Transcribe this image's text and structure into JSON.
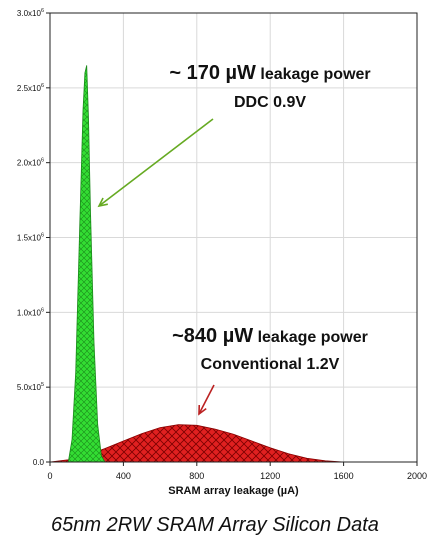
{
  "chart_data": {
    "type": "area",
    "title": "",
    "xlabel": "SRAM array leakage (µA)",
    "ylabel": "",
    "xlim": [
      0,
      2000
    ],
    "ylim": [
      0,
      3000000
    ],
    "x_ticks": [
      0,
      400,
      800,
      1200,
      1600,
      2000
    ],
    "y_ticks": [
      {
        "value": 0,
        "label": "0.0"
      },
      {
        "value": 500000,
        "label": "5.0x10",
        "exp": "5"
      },
      {
        "value": 1000000,
        "label": "1.0x10",
        "exp": "6"
      },
      {
        "value": 1500000,
        "label": "1.5x10",
        "exp": "6"
      },
      {
        "value": 2000000,
        "label": "2.0x10",
        "exp": "6"
      },
      {
        "value": 2500000,
        "label": "2.5x10",
        "exp": "6"
      },
      {
        "value": 3000000,
        "label": "3.0x10",
        "exp": "6"
      }
    ],
    "grid": true,
    "series": [
      {
        "color": "#33dd33",
        "x": [
          100,
          120,
          140,
          160,
          180,
          190,
          200,
          210,
          220,
          240,
          260,
          280,
          300
        ],
        "y": [
          0,
          150000,
          600000,
          1500000,
          2350000,
          2600000,
          2650000,
          2300000,
          1700000,
          800000,
          250000,
          40000,
          0
        ]
      },
      {
        "color": "#dd2222",
        "x": [
          0,
          100,
          200,
          300,
          400,
          500,
          600,
          700,
          800,
          900,
          1000,
          1100,
          1200,
          1300,
          1400,
          1500,
          1600
        ],
        "y": [
          0,
          15000,
          45000,
          90000,
          140000,
          190000,
          230000,
          250000,
          245000,
          220000,
          185000,
          140000,
          95000,
          55000,
          25000,
          8000,
          0
        ]
      }
    ],
    "annotations": [
      {
        "id": "ddc",
        "value": "~ 170 µW",
        "rest": "leakage power",
        "line2": "DDC 0.9V",
        "color": "#66aa22"
      },
      {
        "id": "conv",
        "value": "~840 µW",
        "rest": "leakage power",
        "line2": "Conventional 1.2V",
        "color": "#bb2222"
      }
    ]
  },
  "caption": "65nm 2RW SRAM Array Silicon Data"
}
